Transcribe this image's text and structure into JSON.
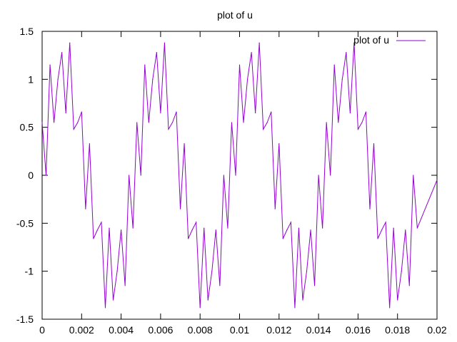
{
  "chart_data": {
    "type": "line",
    "title": "plot of u",
    "xlabel": "",
    "ylabel": "",
    "xlim": [
      0,
      0.02
    ],
    "ylim": [
      -1.5,
      1.5
    ],
    "x_ticks": [
      "0",
      "0.002",
      "0.004",
      "0.006",
      "0.008",
      "0.01",
      "0.012",
      "0.014",
      "0.016",
      "0.018",
      "0.02"
    ],
    "y_ticks": [
      "1.5",
      "1",
      "0.5",
      "0",
      "-0.5",
      "-1",
      "-1.5"
    ],
    "grid": false,
    "legend_position": "top-right",
    "series": [
      {
        "name": "plot of u",
        "color": "#9400d3",
        "points": [
          [
            0.0,
            0.55
          ],
          [
            0.0002,
            0.0
          ],
          [
            0.0004,
            1.15
          ],
          [
            0.0006,
            0.55
          ],
          [
            0.0008,
            1.0
          ],
          [
            0.001,
            1.28
          ],
          [
            0.0012,
            0.65
          ],
          [
            0.0014,
            1.38
          ],
          [
            0.0016,
            0.48
          ],
          [
            0.0018,
            0.55
          ],
          [
            0.002,
            0.66
          ],
          [
            0.0022,
            -0.35
          ],
          [
            0.0024,
            0.33
          ],
          [
            0.0026,
            -0.66
          ],
          [
            0.0028,
            -0.57
          ],
          [
            0.003,
            -0.49
          ],
          [
            0.0032,
            -1.38
          ],
          [
            0.0034,
            -0.55
          ],
          [
            0.0036,
            -1.3
          ],
          [
            0.0038,
            -1.0
          ],
          [
            0.004,
            -0.57
          ],
          [
            0.0042,
            -1.15
          ],
          [
            0.0044,
            0.0
          ],
          [
            0.0046,
            -0.55
          ],
          [
            0.0048,
            0.55
          ],
          [
            0.005,
            0.0
          ],
          [
            0.0052,
            1.15
          ],
          [
            0.0054,
            0.55
          ],
          [
            0.0056,
            1.0
          ],
          [
            0.0058,
            1.28
          ],
          [
            0.006,
            0.65
          ],
          [
            0.0062,
            1.38
          ],
          [
            0.0064,
            0.48
          ],
          [
            0.0066,
            0.55
          ],
          [
            0.0068,
            0.66
          ],
          [
            0.007,
            -0.35
          ],
          [
            0.0072,
            0.33
          ],
          [
            0.0074,
            -0.66
          ],
          [
            0.0076,
            -0.57
          ],
          [
            0.0078,
            -0.49
          ],
          [
            0.008,
            -1.38
          ],
          [
            0.0082,
            -0.55
          ],
          [
            0.0084,
            -1.3
          ],
          [
            0.0086,
            -1.0
          ],
          [
            0.0088,
            -0.57
          ],
          [
            0.009,
            -1.15
          ],
          [
            0.0092,
            0.0
          ],
          [
            0.0094,
            -0.55
          ],
          [
            0.0096,
            0.55
          ],
          [
            0.0098,
            0.0
          ],
          [
            0.01,
            1.15
          ],
          [
            0.0102,
            0.55
          ],
          [
            0.0104,
            1.0
          ],
          [
            0.0106,
            1.28
          ],
          [
            0.0108,
            0.65
          ],
          [
            0.011,
            1.38
          ],
          [
            0.0112,
            0.48
          ],
          [
            0.0114,
            0.55
          ],
          [
            0.0116,
            0.66
          ],
          [
            0.0118,
            -0.35
          ],
          [
            0.012,
            0.33
          ],
          [
            0.0122,
            -0.66
          ],
          [
            0.0124,
            -0.57
          ],
          [
            0.0126,
            -0.49
          ],
          [
            0.0128,
            -1.38
          ],
          [
            0.013,
            -0.55
          ],
          [
            0.0132,
            -1.3
          ],
          [
            0.0134,
            -1.0
          ],
          [
            0.0136,
            -0.57
          ],
          [
            0.0138,
            -1.15
          ],
          [
            0.014,
            0.0
          ],
          [
            0.0142,
            -0.55
          ],
          [
            0.0144,
            0.55
          ],
          [
            0.0146,
            0.0
          ],
          [
            0.0148,
            1.15
          ],
          [
            0.015,
            0.55
          ],
          [
            0.0152,
            1.0
          ],
          [
            0.0154,
            1.28
          ],
          [
            0.0156,
            0.65
          ],
          [
            0.0158,
            1.38
          ],
          [
            0.016,
            0.48
          ],
          [
            0.0162,
            0.55
          ],
          [
            0.0164,
            0.66
          ],
          [
            0.0166,
            -0.35
          ],
          [
            0.0168,
            0.33
          ],
          [
            0.017,
            -0.66
          ],
          [
            0.0172,
            -0.57
          ],
          [
            0.0174,
            -0.49
          ],
          [
            0.0176,
            -1.38
          ],
          [
            0.0178,
            -0.55
          ],
          [
            0.018,
            -1.3
          ],
          [
            0.0182,
            -1.0
          ],
          [
            0.0184,
            -0.57
          ],
          [
            0.0186,
            -1.15
          ],
          [
            0.0188,
            0.0
          ],
          [
            0.019,
            -0.55
          ],
          [
            0.02,
            -0.05
          ]
        ]
      }
    ]
  }
}
